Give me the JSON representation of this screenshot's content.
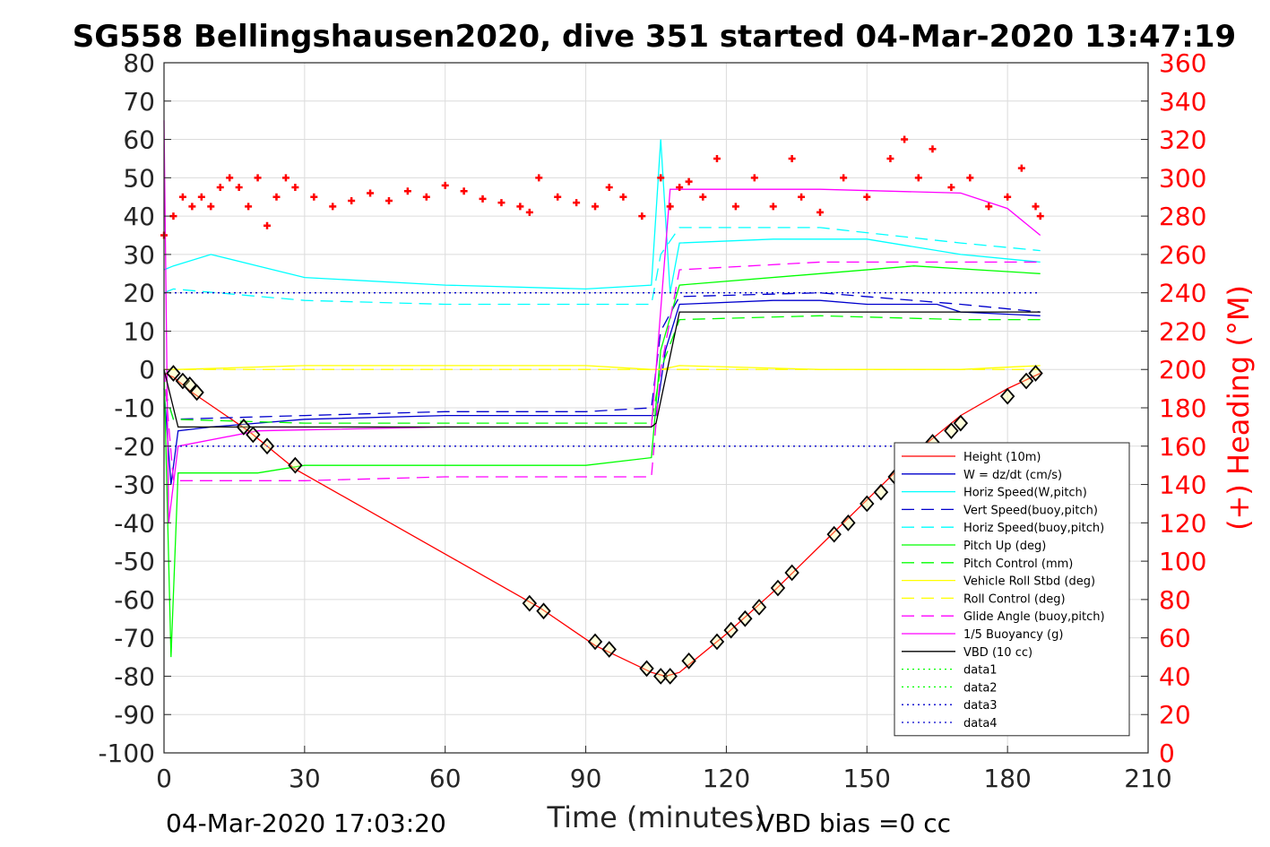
{
  "chart_data": {
    "type": "line",
    "title": "SG558 Bellingshausen2020, dive 351 started 04-Mar-2020 13:47:19",
    "xlabel": "Time (minutes)",
    "ylabel": "",
    "ylabel_right": "(+) Heading (°M)",
    "xlim": [
      0,
      210
    ],
    "ylim": [
      -100,
      80
    ],
    "ylim_right": [
      0,
      360
    ],
    "x_ticks": [
      "0",
      "30",
      "60",
      "90",
      "120",
      "150",
      "180",
      "210"
    ],
    "y_ticks": [
      "80",
      "70",
      "60",
      "50",
      "40",
      "30",
      "20",
      "10",
      "0",
      "-10",
      "-20",
      "-30",
      "-40",
      "-50",
      "-60",
      "-70",
      "-80",
      "-90",
      "-100"
    ],
    "y_right_ticks": [
      "360",
      "340",
      "320",
      "300",
      "280",
      "260",
      "240",
      "220",
      "200",
      "180",
      "160",
      "140",
      "120",
      "100",
      "80",
      "60",
      "40",
      "20",
      "0"
    ],
    "grid": true,
    "legend_position": "lower-right",
    "footer_left": "04-Mar-2020 17:03:20",
    "footer_right": "VBD bias =0 cc",
    "series": [
      {
        "name": "Height (10m)",
        "color": "#ff0000",
        "style": "solid",
        "x": [
          0,
          2,
          6,
          18,
          22,
          28,
          80,
          92,
          104,
          107,
          110,
          120,
          130,
          140,
          150,
          160,
          170,
          180,
          187
        ],
        "y": [
          -1,
          -2,
          -6,
          -16,
          -20,
          -26,
          -62,
          -72,
          -79,
          -80,
          -79,
          -69,
          -58,
          -46,
          -34,
          -22,
          -12,
          -5,
          -1
        ]
      },
      {
        "name": "W = dz/dt (cm/s)",
        "color": "#0000cd",
        "style": "solid",
        "x": [
          0,
          1.5,
          3,
          10,
          20,
          30,
          60,
          90,
          105,
          107,
          110,
          130,
          140,
          150,
          165,
          170,
          187
        ],
        "y": [
          -5,
          -30,
          -16,
          -15,
          -14,
          -13,
          -12,
          -12,
          -12,
          5,
          17,
          18,
          18,
          17,
          17,
          15,
          14
        ]
      },
      {
        "name": "Horiz Speed(W,pitch)",
        "color": "#00ffff",
        "style": "solid",
        "x": [
          0,
          2,
          10,
          20,
          30,
          60,
          90,
          104,
          106,
          108,
          110,
          130,
          150,
          170,
          187
        ],
        "y": [
          26,
          27,
          30,
          27,
          24,
          22,
          21,
          22,
          60,
          20,
          33,
          34,
          34,
          30,
          28
        ]
      },
      {
        "name": "Vert Speed(buoy,pitch)",
        "color": "#0000cd",
        "style": "dashed",
        "x": [
          0,
          2,
          30,
          60,
          90,
          104,
          106,
          110,
          140,
          170,
          187
        ],
        "y": [
          -5,
          -13,
          -12,
          -11,
          -11,
          -10,
          10,
          19,
          20,
          17,
          15
        ]
      },
      {
        "name": "Horiz Speed(buoy,pitch)",
        "color": "#00ffff",
        "style": "dashed",
        "x": [
          0,
          2,
          30,
          60,
          90,
          104,
          106,
          110,
          140,
          170,
          187
        ],
        "y": [
          20,
          21,
          18,
          17,
          17,
          17,
          30,
          37,
          37,
          33,
          31
        ]
      },
      {
        "name": "Pitch Up (deg)",
        "color": "#00ff00",
        "style": "solid",
        "x": [
          0,
          1.5,
          3,
          20,
          30,
          60,
          90,
          104,
          106,
          110,
          140,
          160,
          187
        ],
        "y": [
          0,
          -75,
          -27,
          -27,
          -25,
          -25,
          -25,
          -23,
          5,
          22,
          25,
          27,
          25
        ]
      },
      {
        "name": "Pitch Control (mm)",
        "color": "#00ff00",
        "style": "dashed",
        "x": [
          0,
          2,
          30,
          60,
          90,
          104,
          106,
          110,
          140,
          170,
          187
        ],
        "y": [
          -5,
          -13,
          -14,
          -14,
          -14,
          -14,
          0,
          13,
          14,
          13,
          13
        ]
      },
      {
        "name": "Vehicle Roll Stbd (deg)",
        "color": "#ffff00",
        "style": "solid",
        "x": [
          0,
          3,
          30,
          60,
          90,
          104,
          106,
          110,
          140,
          170,
          187
        ],
        "y": [
          0,
          0,
          1,
          1,
          1,
          0,
          0,
          1,
          0,
          0,
          1
        ]
      },
      {
        "name": "Roll Control (deg)",
        "color": "#ffff00",
        "style": "dashed",
        "x": [
          0,
          3,
          30,
          60,
          90,
          104,
          106,
          110,
          140,
          170,
          187
        ],
        "y": [
          0,
          0,
          0,
          0,
          0,
          0,
          0,
          0,
          0,
          0,
          0
        ]
      },
      {
        "name": "Glide Angle (buoy,pitch)",
        "color": "#ff00ff",
        "style": "dashed",
        "x": [
          0,
          2,
          30,
          60,
          90,
          104,
          106,
          110,
          140,
          170,
          187
        ],
        "y": [
          0,
          -29,
          -29,
          -28,
          -28,
          -28,
          0,
          26,
          28,
          28,
          28
        ]
      },
      {
        "name": "1/5 Buoyancy (g)",
        "color": "#ff00ff",
        "style": "solid",
        "x": [
          0,
          1,
          3,
          20,
          60,
          104,
          105,
          108,
          140,
          170,
          180,
          187
        ],
        "y": [
          65,
          -40,
          -20,
          -16,
          -15,
          -15,
          0,
          47,
          47,
          46,
          42,
          35
        ]
      },
      {
        "name": "VBD (10 cc)",
        "color": "#000000",
        "style": "solid",
        "x": [
          0,
          1,
          3,
          20,
          60,
          104,
          105,
          110,
          140,
          170,
          187
        ],
        "y": [
          0,
          -5,
          -15,
          -15,
          -15,
          -15,
          -14,
          15,
          15,
          15,
          15
        ]
      },
      {
        "name": "data1",
        "color": "#00ff00",
        "style": "dotted",
        "x": [],
        "y": []
      },
      {
        "name": "data2",
        "color": "#00ff00",
        "style": "dotted",
        "x": [],
        "y": []
      },
      {
        "name": "data3",
        "color": "#0000cd",
        "style": "dotted",
        "x": [
          0,
          187
        ],
        "y": [
          20,
          20
        ]
      },
      {
        "name": "data4",
        "color": "#0000cd",
        "style": "dotted",
        "x": [
          0,
          187
        ],
        "y": [
          -20,
          -20
        ]
      }
    ],
    "heading_series": {
      "color": "#ff0000",
      "marker": "plus",
      "axis": "right",
      "x": [
        0,
        2,
        4,
        6,
        8,
        10,
        12,
        14,
        16,
        18,
        20,
        22,
        24,
        26,
        28,
        32,
        36,
        40,
        44,
        48,
        52,
        56,
        60,
        64,
        68,
        72,
        76,
        78,
        80,
        84,
        88,
        92,
        95,
        98,
        102,
        106,
        108,
        110,
        112,
        115,
        118,
        122,
        126,
        130,
        134,
        136,
        140,
        145,
        150,
        155,
        158,
        161,
        164,
        168,
        172,
        176,
        180,
        183,
        186,
        187
      ],
      "y": [
        270,
        280,
        290,
        285,
        290,
        285,
        295,
        300,
        295,
        285,
        300,
        275,
        290,
        300,
        295,
        290,
        285,
        288,
        292,
        288,
        293,
        290,
        296,
        293,
        289,
        287,
        285,
        282,
        300,
        290,
        287,
        285,
        295,
        290,
        280,
        300,
        285,
        295,
        298,
        290,
        310,
        285,
        300,
        285,
        310,
        290,
        282,
        300,
        290,
        310,
        320,
        300,
        315,
        295,
        300,
        285,
        290,
        305,
        285,
        280
      ]
    },
    "depth_markers": {
      "marker": "diamond",
      "color": "#000000",
      "x": [
        2,
        4,
        5.5,
        7,
        17,
        19,
        22,
        28,
        78,
        81,
        92,
        95,
        103,
        106,
        108,
        112,
        118,
        121,
        124,
        127,
        131,
        134,
        143,
        146,
        150,
        153,
        156,
        164,
        168,
        170,
        180,
        184,
        186
      ],
      "y": [
        -1,
        -3,
        -4,
        -6,
        -15,
        -17,
        -20,
        -25,
        -61,
        -63,
        -71,
        -73,
        -78,
        -80,
        -80,
        -76,
        -71,
        -68,
        -65,
        -62,
        -57,
        -53,
        -43,
        -40,
        -35,
        -32,
        -28,
        -19,
        -16,
        -14,
        -7,
        -3,
        -1
      ]
    }
  }
}
